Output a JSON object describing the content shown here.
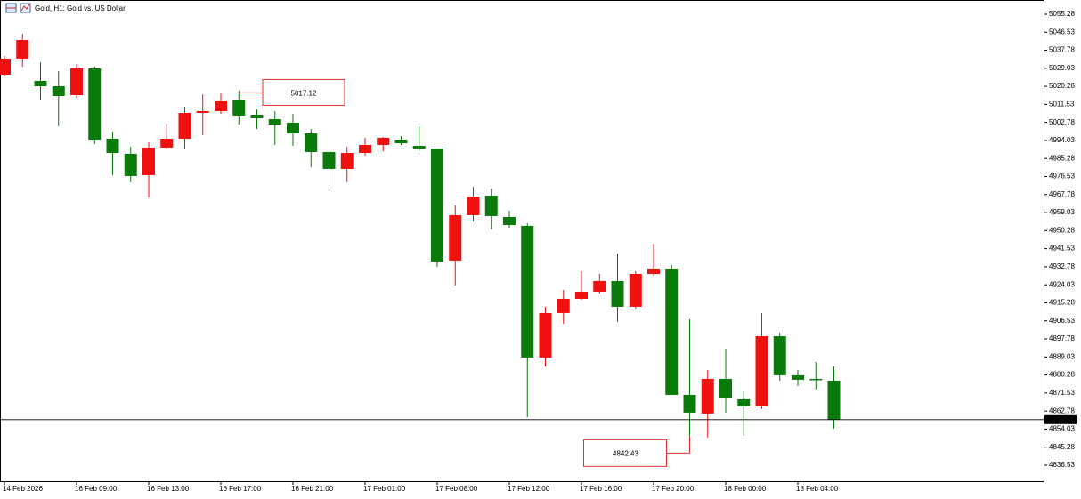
{
  "chart_data": {
    "type": "candlestick",
    "symbol": "Gold, H1:",
    "title": "Gold vs. US Dollar",
    "up_color": "#f01010",
    "down_color": "#0a7a0a",
    "categories": [
      "14 Feb 2026",
      null,
      null,
      null,
      "16 Feb 09:00",
      null,
      null,
      null,
      "16 Feb 13:00",
      null,
      null,
      null,
      "16 Feb 17:00",
      null,
      null,
      null,
      "16 Feb 21:00",
      null,
      null,
      null,
      "17 Feb 01:00",
      null,
      null,
      null,
      "17 Feb 08:00",
      null,
      null,
      null,
      "17 Feb 12:00",
      null,
      null,
      null,
      "17 Feb 16:00",
      null,
      null,
      null,
      "17 Feb 20:00",
      null,
      null,
      null,
      "18 Feb 00:00",
      null,
      null,
      null,
      "18 Feb 04:00",
      null,
      null
    ],
    "open": [
      5025.94,
      5033.71,
      5022.92,
      5020.33,
      5016.02,
      5028.96,
      4994.88,
      4987.55,
      4977.19,
      4990.57,
      4994.88,
      5007.39,
      5008.25,
      5013.86,
      5006.53,
      5004.37,
      5002.65,
      4997.47,
      4988.41,
      4980.21,
      4987.98,
      4991.86,
      4994.45,
      4991.43,
      4990.14,
      4935.78,
      4957.78,
      4967.27,
      4956.92,
      4952.6,
      4888.76,
      4910.33,
      4917.23,
      4920.68,
      4925.86,
      4913.35,
      4929.31,
      4931.9,
      4870.64,
      4861.58,
      4878.4,
      4868.48,
      4865.03,
      4899.11,
      4880.13,
      4878.4,
      4877.54
    ],
    "high": [
      5035.0,
      5045.79,
      5032.0,
      5027.67,
      5031.12,
      5029.82,
      4998.33,
      4991.0,
      4993.16,
      5002.21,
      5010.41,
      5016.45,
      5017.12,
      5018.18,
      5009.12,
      5008.25,
      5006.96,
      4999.63,
      4989.7,
      4991.0,
      4995.31,
      4995.74,
      4996.17,
      5000.92,
      4990.14,
      4962.53,
      4971.59,
      4970.72,
      4959.94,
      4953.9,
      4913.35,
      4921.54,
      4930.6,
      4929.31,
      4939.23,
      4930.6,
      4943.98,
      4933.62,
      4907.31,
      4882.72,
      4893.07,
      4872.36,
      4910.33,
      4900.84,
      4882.72,
      4886.58,
      4884.44
    ],
    "low": [
      5025.5,
      5029.82,
      5013.86,
      5000.92,
      5014.73,
      4992.29,
      4977.19,
      4973.74,
      4966.41,
      4989.7,
      4989.7,
      4996.61,
      5006.96,
      5001.78,
      4999.63,
      4991.86,
      4991.43,
      4981.08,
      4969.43,
      4973.74,
      4986.68,
      4988.84,
      4991.86,
      4988.84,
      4932.76,
      4923.7,
      4954.76,
      4950.88,
      4951.74,
      4859.85,
      4884.44,
      4905.15,
      4916.8,
      4919.82,
      4906.01,
      4912.49,
      4928.45,
      4870.64,
      4850.79,
      4849.93,
      4862.01,
      4850.79,
      4863.74,
      4877.54,
      4874.95,
      4873.22,
      4854.25
    ],
    "close": [
      5033.71,
      5042.77,
      5020.33,
      5015.59,
      5028.96,
      4994.45,
      4987.98,
      4976.76,
      4990.57,
      4994.88,
      5007.39,
      5008.25,
      5013.43,
      5006.1,
      5004.8,
      5001.78,
      4997.47,
      4988.41,
      4980.21,
      4987.98,
      4991.86,
      4995.31,
      4992.73,
      4990.14,
      4935.35,
      4957.78,
      4966.84,
      4957.35,
      4953.04,
      4888.76,
      4910.33,
      4917.23,
      4920.68,
      4925.86,
      4913.35,
      4929.31,
      4931.9,
      4870.64,
      4862.01,
      4878.4,
      4868.91,
      4865.03,
      4899.11,
      4880.13,
      4877.97,
      4877.97,
      4858.62
    ],
    "ylim": [
      4828.76,
      5062.18
    ],
    "yticks": [
      5055.28,
      5046.53,
      5037.78,
      5029.03,
      5020.28,
      5011.53,
      5002.78,
      4994.03,
      4985.28,
      4976.53,
      4967.78,
      4959.03,
      4950.28,
      4941.53,
      4932.78,
      4924.03,
      4915.28,
      4906.53,
      4897.78,
      4889.03,
      4880.28,
      4871.53,
      4862.78,
      4854.03,
      4845.28,
      4836.53
    ],
    "last_price": 4858.62,
    "high_marker": 5017.12,
    "low_marker": 4842.43
  }
}
